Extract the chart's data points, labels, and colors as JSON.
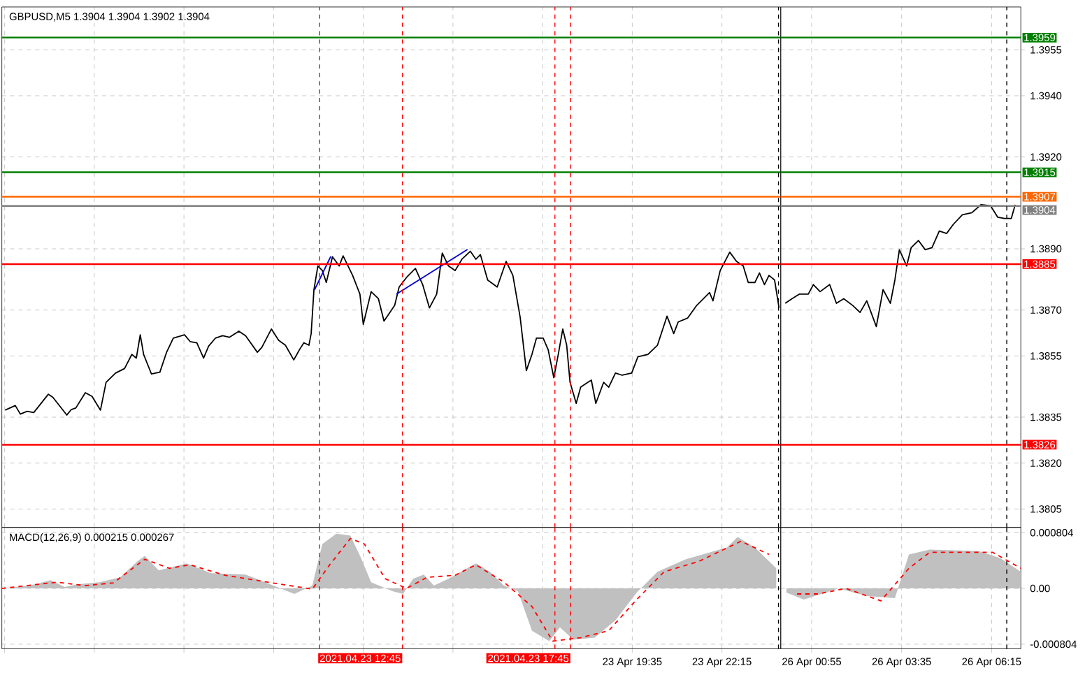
{
  "chart_data": [
    {
      "type": "line",
      "title": "GBPUSD,M5  1.3904 1.3904 1.3902 1.3904",
      "xlim": [
        "2021-04-23T00:50",
        "2021-04-24T00:00"
      ],
      "ylim": [
        1.3799,
        1.3969
      ],
      "grid": true,
      "tick_labels": false,
      "xticks": [
        "2021-04-23T00:55",
        "2021-04-23T03:35",
        "2021-04-23T06:15",
        "2021-04-23T08:55",
        "2021-04-23T11:35",
        "2021-04-23T14:15",
        "2021-04-23T16:55",
        "2021-04-23T19:35",
        "2021-04-23T22:15"
      ],
      "yticks": [
        1.3805,
        1.382,
        1.3835,
        1.3855,
        1.387,
        1.389,
        1.392,
        1.394,
        1.3955
      ],
      "series": [
        {
          "color": "#000000",
          "x": [
            "2021-04-23T00:56",
            "2021-04-23T01:14",
            "2021-04-23T01:23",
            "2021-04-23T01:35",
            "2021-04-23T01:47",
            "2021-04-23T02:13",
            "2021-04-23T02:21",
            "2021-04-23T02:46",
            "2021-04-23T02:54",
            "2021-04-23T03:02",
            "2021-04-23T03:19",
            "2021-04-23T03:31",
            "2021-04-23T03:46",
            "2021-04-23T03:56",
            "2021-04-23T04:13",
            "2021-04-23T04:29",
            "2021-04-23T04:42",
            "2021-04-23T04:50",
            "2021-04-23T04:57",
            "2021-04-23T05:03",
            "2021-04-23T05:17",
            "2021-04-23T05:32",
            "2021-04-23T05:44",
            "2021-04-23T05:56",
            "2021-04-23T06:16",
            "2021-04-23T06:26",
            "2021-04-23T06:38",
            "2021-04-23T06:50",
            "2021-04-23T06:59",
            "2021-04-23T07:11",
            "2021-04-23T07:24",
            "2021-04-23T07:36",
            "2021-04-23T07:53",
            "2021-04-23T08:05",
            "2021-04-23T08:26",
            "2021-04-23T08:34",
            "2021-04-23T08:51",
            "2021-04-23T09:04",
            "2021-04-23T09:16",
            "2021-04-23T09:31",
            "2021-04-23T09:41",
            "2021-04-23T09:49",
            "2021-04-23T09:58",
            "2021-04-23T10:02",
            "2021-04-23T10:07",
            "2021-04-23T10:14",
            "2021-04-23T10:22",
            "2021-04-23T10:29",
            "2021-04-23T10:40",
            "2021-04-23T10:52",
            "2021-04-23T10:59",
            "2021-04-23T11:16",
            "2021-04-23T11:29",
            "2021-04-23T11:35",
            "2021-04-23T11:49",
            "2021-04-23T12:02",
            "2021-04-23T12:12",
            "2021-04-23T12:31",
            "2021-04-23T12:39",
            "2021-04-23T12:52",
            "2021-04-23T13:08",
            "2021-04-23T13:21",
            "2021-04-23T13:33",
            "2021-04-23T13:46",
            "2021-04-23T13:56",
            "2021-04-23T14:07",
            "2021-04-23T14:19",
            "2021-04-23T14:31",
            "2021-04-23T14:46",
            "2021-04-23T14:56",
            "2021-04-23T15:04",
            "2021-04-23T15:17",
            "2021-04-23T15:34",
            "2021-04-23T15:50",
            "2021-04-23T16:02",
            "2021-04-23T16:15",
            "2021-04-23T16:26",
            "2021-04-23T16:36",
            "2021-04-23T16:44",
            "2021-04-23T16:56",
            "2021-04-23T17:05",
            "2021-04-23T17:15",
            "2021-04-23T17:23",
            "2021-04-23T17:31",
            "2021-04-23T17:38",
            "2021-04-23T17:44",
            "2021-04-23T17:55",
            "2021-04-23T18:03",
            "2021-04-23T18:16",
            "2021-04-23T18:22",
            "2021-04-23T18:30",
            "2021-04-23T18:44",
            "2021-04-23T18:53",
            "2021-04-23T19:05",
            "2021-04-23T19:17",
            "2021-04-23T19:34",
            "2021-04-23T19:45",
            "2021-04-23T20:03",
            "2021-04-23T20:20",
            "2021-04-23T20:37",
            "2021-04-23T20:49",
            "2021-04-23T20:57",
            "2021-04-23T21:14",
            "2021-04-23T21:30",
            "2021-04-23T21:53",
            "2021-04-23T21:59",
            "2021-04-23T22:12",
            "2021-04-23T22:29",
            "2021-04-23T22:41",
            "2021-04-23T22:53",
            "2021-04-23T23:02",
            "2021-04-23T23:14",
            "2021-04-23T23:22",
            "2021-04-23T23:31",
            "2021-04-23T23:39",
            "2021-04-23T23:49",
            "2021-04-23T23:57"
          ],
          "values": [
            1.38373,
            1.38388,
            1.3836,
            1.38369,
            1.38365,
            1.38425,
            1.38415,
            1.38357,
            1.38375,
            1.3838,
            1.3843,
            1.38418,
            1.38373,
            1.38464,
            1.38494,
            1.38509,
            1.38555,
            1.38543,
            1.38619,
            1.38555,
            1.38491,
            1.38497,
            1.38562,
            1.38608,
            1.38619,
            1.38597,
            1.38593,
            1.38543,
            1.38582,
            1.38608,
            1.38616,
            1.38611,
            1.38631,
            1.38616,
            1.38562,
            1.38578,
            1.38638,
            1.38601,
            1.38585,
            1.38537,
            1.3857,
            1.38593,
            1.38585,
            1.38623,
            1.38767,
            1.38844,
            1.38829,
            1.3879,
            1.38874,
            1.38844,
            1.38877,
            1.38813,
            1.38752,
            1.38653,
            1.3876,
            1.38737,
            1.38664,
            1.38715,
            1.38775,
            1.38806,
            1.38836,
            1.38783,
            1.38707,
            1.38752,
            1.38886,
            1.38844,
            1.38829,
            1.38866,
            1.38892,
            1.38866,
            1.38881,
            1.38798,
            1.38775,
            1.38859,
            1.38813,
            1.38676,
            1.38502,
            1.38555,
            1.38608,
            1.38608,
            1.3857,
            1.38479,
            1.38555,
            1.38638,
            1.38585,
            1.38464,
            1.38395,
            1.38448,
            1.38464,
            1.38471,
            1.38395,
            1.38464,
            1.38448,
            1.38494,
            1.38487,
            1.38494,
            1.38547,
            1.38555,
            1.38585,
            1.3868,
            1.38623,
            1.38661,
            1.38674,
            1.38715,
            1.38757,
            1.3873,
            1.38829,
            1.38889,
            1.38859,
            1.38844,
            1.3879,
            1.3879,
            1.38821,
            1.38783,
            1.38813,
            1.38798,
            1.38707
          ]
        },
        {
          "color": "#0000cd",
          "x": [
            "2021-04-23T10:08",
            "2021-04-23T10:37"
          ],
          "values": [
            1.38766,
            1.38875
          ]
        },
        {
          "color": "#0000cd",
          "x": [
            "2021-04-23T12:34",
            "2021-04-23T14:41"
          ],
          "values": [
            1.38752,
            1.38898
          ]
        }
      ],
      "ref_lines": [
        {
          "axis": "y",
          "value": 1.3959,
          "color": "#008000"
        },
        {
          "axis": "y",
          "value": 1.3915,
          "color": "#008000"
        },
        {
          "axis": "y",
          "value": 1.3907,
          "color": "#ff6600"
        },
        {
          "axis": "y",
          "value": 1.3904,
          "color": "#808080"
        },
        {
          "axis": "y",
          "value": 1.3885,
          "color": "#ff0000"
        },
        {
          "axis": "y",
          "value": 1.3826,
          "color": "#ff0000"
        },
        {
          "axis": "x",
          "value": "2021-04-23T10:17",
          "color": "#ff0000",
          "line_style": "dashed"
        },
        {
          "axis": "x",
          "value": "2021-04-23T12:45",
          "color": "#ff0000",
          "line_style": "dashed"
        },
        {
          "axis": "x",
          "value": "2021-04-23T17:17",
          "color": "#ff0000",
          "line_style": "dashed"
        },
        {
          "axis": "x",
          "value": "2021-04-23T17:45",
          "color": "#ff0000",
          "line_style": "dashed"
        },
        {
          "axis": "x",
          "value": "2021-04-23T23:56",
          "color": "#000000",
          "line_style": "dashed"
        }
      ]
    },
    {
      "type": "line",
      "xlim": [
        "2021-04-26T00:00",
        "2021-04-26T07:07"
      ],
      "ylim": [
        1.3799,
        1.3969
      ],
      "grid": true,
      "tick_labels": "y",
      "xticks": [
        "2021-04-26T00:55",
        "2021-04-26T03:35",
        "2021-04-26T06:15"
      ],
      "yticks": [
        {
          "value": 1.3805,
          "label": "1.3805"
        },
        {
          "value": 1.382,
          "label": "1.3820"
        },
        {
          "value": 1.3835,
          "label": "1.3835"
        },
        {
          "value": 1.3855,
          "label": "1.3855"
        },
        {
          "value": 1.387,
          "label": "1.3870"
        },
        {
          "value": 1.389,
          "label": "1.3890"
        },
        {
          "value": 1.392,
          "label": "1.3920"
        },
        {
          "value": 1.394,
          "label": "1.3940"
        },
        {
          "value": 1.3955,
          "label": "1.3955"
        }
      ],
      "series": [
        {
          "color": "#000000",
          "x": [
            "2021-04-26T00:08",
            "2021-04-26T00:20",
            "2021-04-26T00:33",
            "2021-04-26T00:49",
            "2021-04-26T00:58",
            "2021-04-26T01:10",
            "2021-04-26T01:27",
            "2021-04-26T01:39",
            "2021-04-26T01:52",
            "2021-04-26T02:08",
            "2021-04-26T02:21",
            "2021-04-26T02:33",
            "2021-04-26T02:50",
            "2021-04-26T03:02",
            "2021-04-26T03:15",
            "2021-04-26T03:23",
            "2021-04-26T03:31",
            "2021-04-26T03:44",
            "2021-04-26T03:52",
            "2021-04-26T04:05",
            "2021-04-26T04:17",
            "2021-04-26T04:29",
            "2021-04-26T04:42",
            "2021-04-26T04:55",
            "2021-04-26T05:07",
            "2021-04-26T05:23",
            "2021-04-26T05:40",
            "2021-04-26T05:56",
            "2021-04-26T06:13",
            "2021-04-26T06:26",
            "2021-04-26T06:38",
            "2021-04-26T06:50",
            "2021-04-26T06:57"
          ],
          "values": [
            1.38722,
            1.38737,
            1.38752,
            1.38752,
            1.38783,
            1.3876,
            1.38783,
            1.38722,
            1.38737,
            1.38715,
            1.38692,
            1.3873,
            1.38646,
            1.38767,
            1.38722,
            1.38798,
            1.38897,
            1.38844,
            1.38904,
            1.38927,
            1.38897,
            1.38904,
            1.38958,
            1.3895,
            1.3898,
            1.39011,
            1.39018,
            1.39044,
            1.39041,
            1.39003,
            1.38999,
            1.38999,
            1.39044
          ]
        }
      ],
      "ref_lines": [
        {
          "axis": "y",
          "value": 1.3959,
          "label": "1.3959",
          "color": "#008000"
        },
        {
          "axis": "y",
          "value": 1.3915,
          "label": "1.3915",
          "color": "#008000"
        },
        {
          "axis": "y",
          "value": 1.3907,
          "label": "1.3907",
          "color": "#ff6600"
        },
        {
          "axis": "y",
          "value": 1.3904,
          "label": "1.3904",
          "color": "#808080"
        },
        {
          "axis": "y",
          "value": 1.3885,
          "label": "1.3885",
          "color": "#ff0000"
        },
        {
          "axis": "y",
          "value": 1.3826,
          "label": "1.3826",
          "color": "#ff0000"
        },
        {
          "axis": "x",
          "value": "2021-04-26T06:42",
          "color": "#000000",
          "line_style": "dashed"
        }
      ]
    },
    {
      "type": "area",
      "title": "MACD(12,26,9) 0.000215 0.000267",
      "xlim": [
        "2021-04-23T00:50",
        "2021-04-24T00:00"
      ],
      "ylim": [
        -0.00087,
        0.00088
      ],
      "grid": true,
      "tick_labels": "x",
      "xticks": [
        {
          "value": "2021-04-23T00:55",
          "label": null
        },
        {
          "value": "2021-04-23T03:35",
          "label": null
        },
        {
          "value": "2021-04-23T06:15",
          "label": null
        },
        {
          "value": "2021-04-23T08:55",
          "label": null
        },
        {
          "value": "2021-04-23T11:35",
          "label": null
        },
        {
          "value": "2021-04-23T14:15",
          "label": null
        },
        {
          "value": "2021-04-23T16:55",
          "label": null
        },
        {
          "value": "2021-04-23T19:35",
          "label": "23 Apr 19:35"
        },
        {
          "value": "2021-04-23T22:15",
          "label": "23 Apr 22:15"
        }
      ],
      "yticks": [
        -0.000804,
        0,
        0.000804
      ],
      "series": [
        {
          "type": "area",
          "color": "#c0c0c0",
          "x": [
            "2021-04-23T00:50",
            "2021-04-23T01:40",
            "2021-04-23T02:17",
            "2021-04-23T02:42",
            "2021-04-23T03:07",
            "2021-04-23T03:44",
            "2021-04-23T04:21",
            "2021-04-23T04:52",
            "2021-04-23T05:05",
            "2021-04-23T05:30",
            "2021-04-23T06:20",
            "2021-04-23T07:03",
            "2021-04-23T08:05",
            "2021-04-23T08:43",
            "2021-04-23T09:32",
            "2021-04-23T10:04",
            "2021-04-23T10:22",
            "2021-04-23T10:47",
            "2021-04-23T11:12",
            "2021-04-23T11:31",
            "2021-04-23T11:49",
            "2021-04-23T12:27",
            "2021-04-23T12:46",
            "2021-04-23T13:04",
            "2021-04-23T13:23",
            "2021-04-23T13:41",
            "2021-04-23T14:07",
            "2021-04-23T14:56",
            "2021-04-23T15:21",
            "2021-04-23T15:46",
            "2021-04-23T16:11",
            "2021-04-23T16:36",
            "2021-04-23T17:07",
            "2021-04-23T17:26",
            "2021-04-23T17:50",
            "2021-04-23T18:28",
            "2021-04-23T19:05",
            "2021-04-23T19:43",
            "2021-04-23T20:20",
            "2021-04-23T21:10",
            "2021-04-23T22:24",
            "2021-04-23T22:43",
            "2021-04-23T23:14",
            "2021-04-23T23:52"
          ],
          "values": [
            0,
            4e-05,
            0.00012,
            2e-05,
            6e-05,
            9e-05,
            0.00016,
            0.00039,
            0.00047,
            0.00026,
            0.00036,
            0.00022,
            0.0002,
            8e-05,
            -8e-05,
            4e-05,
            0.00064,
            0.00079,
            0.00076,
            0.00044,
            9e-05,
            -4e-05,
            -8e-05,
            0.00014,
            0.0002,
            4e-05,
            0.00014,
            0.00036,
            0.00024,
            4e-05,
            -4e-05,
            -0.00061,
            -0.00076,
            -0.00056,
            -0.00074,
            -0.00071,
            -0.00046,
            -6e-05,
            0.00024,
            0.00042,
            0.00059,
            0.00074,
            0.00059,
            0.00029
          ]
        },
        {
          "type": "line",
          "color": "#ff0000",
          "line_style": "dashed",
          "x": [
            "2021-04-23T00:50",
            "2021-04-23T02:29",
            "2021-04-23T03:19",
            "2021-04-23T04:09",
            "2021-04-23T05:05",
            "2021-04-23T05:49",
            "2021-04-23T06:26",
            "2021-04-23T07:28",
            "2021-04-23T09:08",
            "2021-04-23T10:04",
            "2021-04-23T10:35",
            "2021-04-23T11:12",
            "2021-04-23T11:37",
            "2021-04-23T12:14",
            "2021-04-23T12:52",
            "2021-04-23T13:29",
            "2021-04-23T14:19",
            "2021-04-23T14:56",
            "2021-04-23T15:46",
            "2021-04-23T16:36",
            "2021-04-23T17:13",
            "2021-04-23T18:03",
            "2021-04-23T18:53",
            "2021-04-23T19:43",
            "2021-04-23T20:32",
            "2021-04-23T21:34",
            "2021-04-23T22:49",
            "2021-04-23T23:39"
          ],
          "values": [
            0,
            9e-05,
            4e-05,
            8e-05,
            0.00042,
            0.00029,
            0.00034,
            0.00019,
            6e-05,
            -1e-05,
            0.00034,
            0.00072,
            0.00064,
            0.00014,
            0,
            0.00016,
            0.00019,
            0.00034,
            9e-05,
            -0.00026,
            -0.00076,
            -0.00071,
            -0.00061,
            -0.00016,
            0.00024,
            0.00039,
            0.00068,
            0.00049
          ]
        }
      ],
      "ref_lines": [
        {
          "axis": "x",
          "value": "2021-04-23T10:17",
          "color": "#ff0000",
          "line_style": "dashed"
        },
        {
          "axis": "x",
          "value": "2021-04-23T12:45",
          "label": "2021.04.23 12:45",
          "color": "#ff0000",
          "line_style": "dashed"
        },
        {
          "axis": "x",
          "value": "2021-04-23T17:17",
          "color": "#ff0000",
          "line_style": "dashed"
        },
        {
          "axis": "x",
          "value": "2021-04-23T17:45",
          "label": "2021.04.23 17:45",
          "color": "#ff0000",
          "line_style": "dashed"
        },
        {
          "axis": "x",
          "value": "2021-04-23T23:56",
          "color": "#000000",
          "line_style": "dashed"
        }
      ]
    },
    {
      "type": "area",
      "xlim": [
        "2021-04-26T00:00",
        "2021-04-26T07:07"
      ],
      "ylim": [
        -0.00087,
        0.00088
      ],
      "grid": true,
      "xticks": [
        {
          "value": "2021-04-26T00:55",
          "label": "26 Apr 00:55"
        },
        {
          "value": "2021-04-26T03:35",
          "label": "26 Apr 03:35"
        },
        {
          "value": "2021-04-26T06:15",
          "label": "26 Apr 06:15"
        }
      ],
      "yticks": [
        {
          "value": -0.000804,
          "label": "-0.000804"
        },
        {
          "value": 0,
          "label": "0.00"
        },
        {
          "value": 0.000804,
          "label": "0.000804"
        }
      ],
      "series": [
        {
          "type": "area",
          "color": "#c0c0c0",
          "x": [
            "2021-04-26T00:10",
            "2021-04-26T00:41",
            "2021-04-26T01:43",
            "2021-04-26T02:33",
            "2021-04-26T03:23",
            "2021-04-26T03:48",
            "2021-04-26T04:25",
            "2021-04-26T05:52",
            "2021-04-26T06:30",
            "2021-04-26T07:07"
          ],
          "values": [
            -6e-05,
            -0.00016,
            0,
            -0.00011,
            -0.00014,
            0.00049,
            0.00056,
            0.00054,
            0.00044,
            0.00024
          ]
        },
        {
          "type": "line",
          "color": "#ff0000",
          "line_style": "dashed",
          "x": [
            "2021-04-26T00:29",
            "2021-04-26T01:06",
            "2021-04-26T01:56",
            "2021-04-26T02:58",
            "2021-04-26T03:48",
            "2021-04-26T04:25",
            "2021-04-26T06:17",
            "2021-04-26T07:07"
          ],
          "values": [
            -8e-05,
            -8e-05,
            0,
            -0.00018,
            0.00029,
            0.00052,
            0.00052,
            0.00029
          ]
        }
      ],
      "ref_lines": [
        {
          "axis": "x",
          "value": "2021-04-26T06:42",
          "color": "#000000",
          "line_style": "dashed"
        }
      ]
    }
  ]
}
